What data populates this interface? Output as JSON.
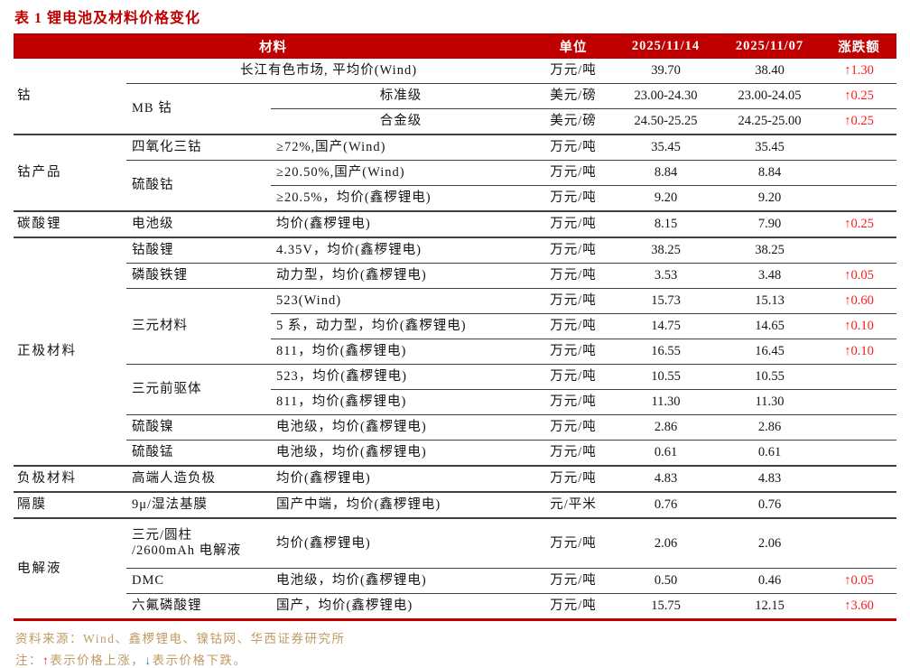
{
  "title": "表 1 锂电池及材料价格变化",
  "colors": {
    "header_bg": "#c00000",
    "header_text": "#ffffff",
    "title_red": "#c00000",
    "up_red": "#ff1a1a",
    "down_blue": "#2e74b5",
    "footer_tan": "#bf9b63",
    "rule_dark": "#3f3f3f",
    "bottom_rule_red": "#c00000"
  },
  "table": {
    "headers": {
      "material": "材料",
      "unit": "单位",
      "date1": "2025/11/14",
      "date2": "2025/11/07",
      "change": "涨跌额"
    },
    "rows": [
      {
        "category": {
          "label": "钴",
          "rowspan": 3
        },
        "material": {
          "label": "长江有色市场, 平均价(Wind)",
          "rowspan": 1,
          "colspan": 2,
          "center": true
        },
        "unit": "万元/吨",
        "price_1114": "39.70",
        "price_1107": "38.40",
        "change": "↑1.30"
      },
      {
        "material": {
          "label": "MB 钴",
          "rowspan": 2
        },
        "spec": {
          "label": "标准级",
          "center": true
        },
        "unit": "美元/磅",
        "price_1114": "23.00-24.30",
        "price_1107": "23.00-24.05",
        "change": "↑0.25"
      },
      {
        "spec": {
          "label": "合金级",
          "center": true
        },
        "unit": "美元/磅",
        "price_1114": "24.50-25.25",
        "price_1107": "24.25-25.00",
        "change": "↑0.25"
      },
      {
        "group_start": true,
        "category": {
          "label": "钴产品",
          "rowspan": 3
        },
        "material": {
          "label": "四氧化三钴",
          "rowspan": 1
        },
        "spec": {
          "label": "≥72%,国产(Wind)"
        },
        "unit": "万元/吨",
        "price_1114": "35.45",
        "price_1107": "35.45",
        "change": ""
      },
      {
        "material": {
          "label": "硫酸钴",
          "rowspan": 2
        },
        "spec": {
          "label": "≥20.50%,国产(Wind)"
        },
        "unit": "万元/吨",
        "price_1114": "8.84",
        "price_1107": "8.84",
        "change": ""
      },
      {
        "spec": {
          "label": "≥20.5%，均价(鑫椤锂电)"
        },
        "unit": "万元/吨",
        "price_1114": "9.20",
        "price_1107": "9.20",
        "change": ""
      },
      {
        "group_start": true,
        "category": {
          "label": "碳酸锂",
          "rowspan": 1
        },
        "material": {
          "label": "电池级",
          "rowspan": 1
        },
        "spec": {
          "label": "均价(鑫椤锂电)"
        },
        "unit": "万元/吨",
        "price_1114": "8.15",
        "price_1107": "7.90",
        "change": "↑0.25"
      },
      {
        "group_start": true,
        "category": {
          "label": "正极材料",
          "rowspan": 9
        },
        "material": {
          "label": "钴酸锂",
          "rowspan": 1
        },
        "spec": {
          "label": "4.35V，均价(鑫椤锂电)"
        },
        "unit": "万元/吨",
        "price_1114": "38.25",
        "price_1107": "38.25",
        "change": ""
      },
      {
        "material": {
          "label": "磷酸铁锂",
          "rowspan": 1
        },
        "spec": {
          "label": "动力型，均价(鑫椤锂电)"
        },
        "unit": "万元/吨",
        "price_1114": "3.53",
        "price_1107": "3.48",
        "change": "↑0.05"
      },
      {
        "material": {
          "label": "三元材料",
          "rowspan": 3
        },
        "spec": {
          "label": "523(Wind)"
        },
        "unit": "万元/吨",
        "price_1114": "15.73",
        "price_1107": "15.13",
        "change": "↑0.60"
      },
      {
        "spec": {
          "label": "5 系，动力型，均价(鑫椤锂电)"
        },
        "unit": "万元/吨",
        "price_1114": "14.75",
        "price_1107": "14.65",
        "change": "↑0.10"
      },
      {
        "spec": {
          "label": "811，均价(鑫椤锂电)"
        },
        "unit": "万元/吨",
        "price_1114": "16.55",
        "price_1107": "16.45",
        "change": "↑0.10"
      },
      {
        "material": {
          "label": "三元前驱体",
          "rowspan": 2
        },
        "spec": {
          "label": "523，均价(鑫椤锂电)"
        },
        "unit": "万元/吨",
        "price_1114": "10.55",
        "price_1107": "10.55",
        "change": ""
      },
      {
        "spec": {
          "label": "811，均价(鑫椤锂电)"
        },
        "unit": "万元/吨",
        "price_1114": "11.30",
        "price_1107": "11.30",
        "change": ""
      },
      {
        "material": {
          "label": "硫酸镍",
          "rowspan": 1
        },
        "spec": {
          "label": "电池级，均价(鑫椤锂电)"
        },
        "unit": "万元/吨",
        "price_1114": "2.86",
        "price_1107": "2.86",
        "change": ""
      },
      {
        "material": {
          "label": "硫酸锰",
          "rowspan": 1
        },
        "spec": {
          "label": "电池级，均价(鑫椤锂电)"
        },
        "unit": "万元/吨",
        "price_1114": "0.61",
        "price_1107": "0.61",
        "change": ""
      },
      {
        "group_start": true,
        "category": {
          "label": "负极材料",
          "rowspan": 1
        },
        "material": {
          "label": "高端人造负极",
          "rowspan": 1
        },
        "spec": {
          "label": "均价(鑫椤锂电)"
        },
        "unit": "万元/吨",
        "price_1114": "4.83",
        "price_1107": "4.83",
        "change": ""
      },
      {
        "group_start": true,
        "category": {
          "label": "隔膜",
          "rowspan": 1
        },
        "material": {
          "label": "9μ/湿法基膜",
          "rowspan": 1
        },
        "spec": {
          "label": "国产中端，均价(鑫椤锂电)"
        },
        "unit": "元/平米",
        "price_1114": "0.76",
        "price_1107": "0.76",
        "change": ""
      },
      {
        "group_start": true,
        "tall": true,
        "category": {
          "label": "电解液",
          "rowspan": 3
        },
        "material": {
          "lines": [
            "三元/圆柱",
            "/2600mAh 电解液"
          ],
          "rowspan": 1
        },
        "spec": {
          "label": "均价(鑫椤锂电)"
        },
        "unit": "万元/吨",
        "price_1114": "2.06",
        "price_1107": "2.06",
        "change": ""
      },
      {
        "material": {
          "label": "DMC",
          "rowspan": 1
        },
        "spec": {
          "label": "电池级，均价(鑫椤锂电)"
        },
        "unit": "万元/吨",
        "price_1114": "0.50",
        "price_1107": "0.46",
        "change": "↑0.05"
      },
      {
        "material": {
          "label": "六氟磷酸锂",
          "rowspan": 1
        },
        "spec": {
          "label": "国产，均价(鑫椤锂电)"
        },
        "unit": "万元/吨",
        "price_1114": "15.75",
        "price_1107": "12.15",
        "change": "↑3.60"
      }
    ]
  },
  "footer": {
    "source": "资料来源：Wind、鑫椤锂电、镍钴网、华西证券研究所",
    "note_prefix": "注：",
    "up_arrow": "↑",
    "note_up_text": "表示价格上涨，",
    "down_arrow": "↓",
    "note_down_text": "表示价格下跌。"
  }
}
